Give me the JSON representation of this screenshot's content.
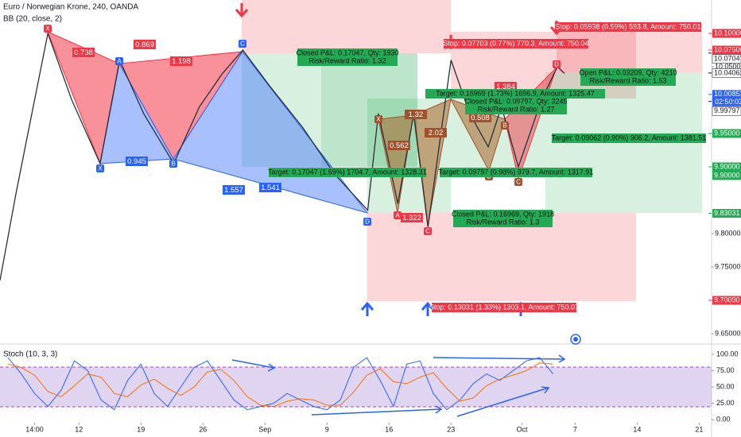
{
  "header": {
    "symbol": "Euro / Norwegian Krone, 240, OANDA",
    "indicator": "BB (20, close, 2)"
  },
  "chart_data": [
    {
      "type": "line",
      "color": "#2a2e39",
      "x": [
        3.1,
        4.9,
        6.7,
        8.5,
        11.2,
        14.4,
        16.6,
        19.3,
        22.7,
        25.6,
        28.2,
        30.5,
        33.6,
        37.2,
        40.8,
        44.6,
        45.8,
        48.0,
        49.8,
        51.4,
        54.0,
        56.1,
        58.2,
        59.7,
        61.6,
        64.2,
        66.0,
        66.8
      ],
      "values": [
        9.73,
        9.86,
        9.98,
        10.1,
        10.0,
        9.905,
        10.06,
        9.98,
        9.905,
        9.99,
        10.04,
        10.075,
        10.02,
        9.96,
        9.89,
        9.835,
        9.98,
        9.845,
        9.98,
        9.81,
        10.06,
        9.98,
        9.93,
        9.99,
        9.9,
        10.0,
        10.05,
        10.04
      ],
      "xlim": [
        3.1,
        83.4
      ],
      "ylim": [
        9.6357,
        10.15
      ],
      "xticks": [
        {
          "value": 7,
          "label": "14:00"
        },
        12,
        19,
        26,
        {
          "value": 33,
          "label": "Sep"
        },
        {
          "value": 40,
          "label": "9"
        },
        {
          "value": 47,
          "label": "16"
        },
        {
          "value": 54,
          "label": "23"
        },
        {
          "value": 62,
          "label": "Oct"
        },
        {
          "value": 68,
          "label": "7"
        },
        {
          "value": 75,
          "label": "14"
        },
        {
          "value": 82,
          "label": "21"
        }
      ],
      "yticks": [
        {
          "value": 10.1,
          "label": "10.10000"
        },
        {
          "value": 10.05,
          "label": "10.05000"
        },
        {
          "value": 10.0,
          "label": "10.00000"
        },
        {
          "value": 9.95,
          "label": "9.95000"
        },
        {
          "value": 9.9,
          "label": "9.90000"
        },
        {
          "value": 9.8,
          "label": "9.80000"
        },
        {
          "value": 9.75,
          "label": "9.75000"
        },
        {
          "value": 9.7,
          "label": "9.70000"
        },
        {
          "value": 9.65,
          "label": "9.65000"
        }
      ]
    },
    {
      "type": "line",
      "title": "Stoch (10, 3, 3)",
      "x": [
        4,
        5.5,
        7,
        8.5,
        10,
        11.5,
        13,
        14.5,
        16,
        17.5,
        19,
        20.5,
        22,
        23.5,
        25,
        26.5,
        28,
        29.5,
        31,
        32.5,
        34,
        35.5,
        37,
        38.5,
        40,
        41.5,
        43,
        44.5,
        46,
        47.5,
        49,
        50.5,
        52,
        53.5,
        55,
        56.5,
        58,
        59.5,
        61,
        62.5,
        64,
        65.5
      ],
      "series": [
        {
          "color": "#2962ff",
          "values": [
            95,
            70,
            40,
            20,
            45,
            90,
            75,
            30,
            15,
            60,
            85,
            40,
            20,
            50,
            80,
            90,
            60,
            30,
            15,
            20,
            25,
            40,
            30,
            20,
            15,
            30,
            80,
            95,
            60,
            20,
            85,
            90,
            40,
            15,
            30,
            55,
            70,
            60,
            75,
            90,
            95,
            70
          ]
        },
        {
          "color": "#ff6d00",
          "values": [
            85,
            80,
            68,
            43,
            35,
            52,
            70,
            65,
            40,
            35,
            53,
            62,
            48,
            37,
            50,
            73,
            77,
            60,
            35,
            22,
            20,
            28,
            32,
            30,
            22,
            22,
            42,
            68,
            78,
            58,
            55,
            65,
            72,
            48,
            28,
            33,
            52,
            62,
            68,
            75,
            87,
            85
          ]
        }
      ],
      "xlim": [
        3.1,
        83.4
      ],
      "ylim": [
        0,
        100
      ],
      "yticks": [
        {
          "value": 100,
          "label": "100.00"
        },
        {
          "value": 75,
          "label": "75.00"
        },
        {
          "value": 50,
          "label": "50.00"
        },
        {
          "value": 25,
          "label": "25.00"
        },
        {
          "value": 0,
          "label": "0.00"
        }
      ]
    }
  ],
  "price_labels": [
    {
      "value": 10.1,
      "label": "10.10000",
      "color": "#f23645"
    },
    {
      "value": 10.075,
      "label": "10.07500",
      "color": "#f23645"
    },
    {
      "value": 10.07047,
      "label": "10.07047",
      "color": "#ffffff"
    },
    {
      "value": 10.04062,
      "label": "10.04062",
      "color": "#ffffff"
    },
    {
      "value": 10.00853,
      "label": "10.00853",
      "color": "#2962ff"
    },
    {
      "value": 9.99797,
      "label": "9.99797",
      "color": "#ffffff"
    },
    {
      "value": 9.95,
      "label": "9.95000",
      "color": "#22ab54"
    },
    {
      "value": 9.9,
      "label": "9.90000",
      "color": "#22ab54"
    },
    {
      "value": 9.9,
      "label": "9.90000",
      "color": "#22ab54"
    },
    {
      "value": 9.83031,
      "label": "9.83031",
      "color": "#22ab54"
    },
    {
      "value": 9.7,
      "label": "9.70000",
      "color": "#f23645"
    }
  ],
  "countdown": "02:50:03",
  "pattern_points": [
    "X",
    "A",
    "C",
    "X",
    "B",
    "D",
    "X",
    "A",
    "C",
    "B",
    "B",
    "C",
    "D"
  ],
  "ratios": [
    0.738,
    0.869,
    1.198,
    0.945,
    1.557,
    1.541,
    0.562,
    1.32,
    2.02,
    1.322,
    0.508,
    1.384
  ],
  "positions": [
    {
      "text": [
        "Closed P&L: 0.17047, Qty: 1930",
        "Risk/Reward Ratio: 1.32"
      ],
      "color": "#22ab54"
    },
    {
      "text": [
        "Stop: 0.05938 (0.59%) 593.8, Amount: 750.01"
      ],
      "color": "#f23645"
    },
    {
      "text": [
        "Stop: 0.07703 (0.77%) 770.3, Amount: 750.04"
      ],
      "color": "#f23645"
    },
    {
      "text": [
        "Open P&L: 0.03209, Qty: 4210",
        "Risk/Reward Ratio: 1.53"
      ],
      "color": "#22ab54"
    },
    {
      "text": [
        "Target: 0.16969 (1.73%) 1696.9, Amount: 1325.47"
      ],
      "color": "#22ab54"
    },
    {
      "text": [
        "Closed P&L: 0.09797, Qty: 3245",
        "Risk/Reward Ratio: 1.27"
      ],
      "color": "#22ab54"
    },
    {
      "text": [
        "Target: 0.09062 (0.90%) 906.2, Amount: 1381.51"
      ],
      "color": "#22ab54"
    },
    {
      "text": [
        "Target: 0.17047 (1.69%) 1704.7, Amount: 1328.31"
      ],
      "color": "#22ab54"
    },
    {
      "text": [
        "Target: 0.09797 (0.98%) 979.7, Amount: 1317.91"
      ],
      "color": "#22ab54"
    },
    {
      "text": [
        "Closed P&L: 0.16969, Qty: 1918",
        "Risk/Reward Ratio: 1.3"
      ],
      "color": "#22ab54"
    },
    {
      "text": [
        "Stop: 0.13031 (1.33%) 1303.1, Amount: 750.07"
      ],
      "color": "#f23645"
    }
  ]
}
